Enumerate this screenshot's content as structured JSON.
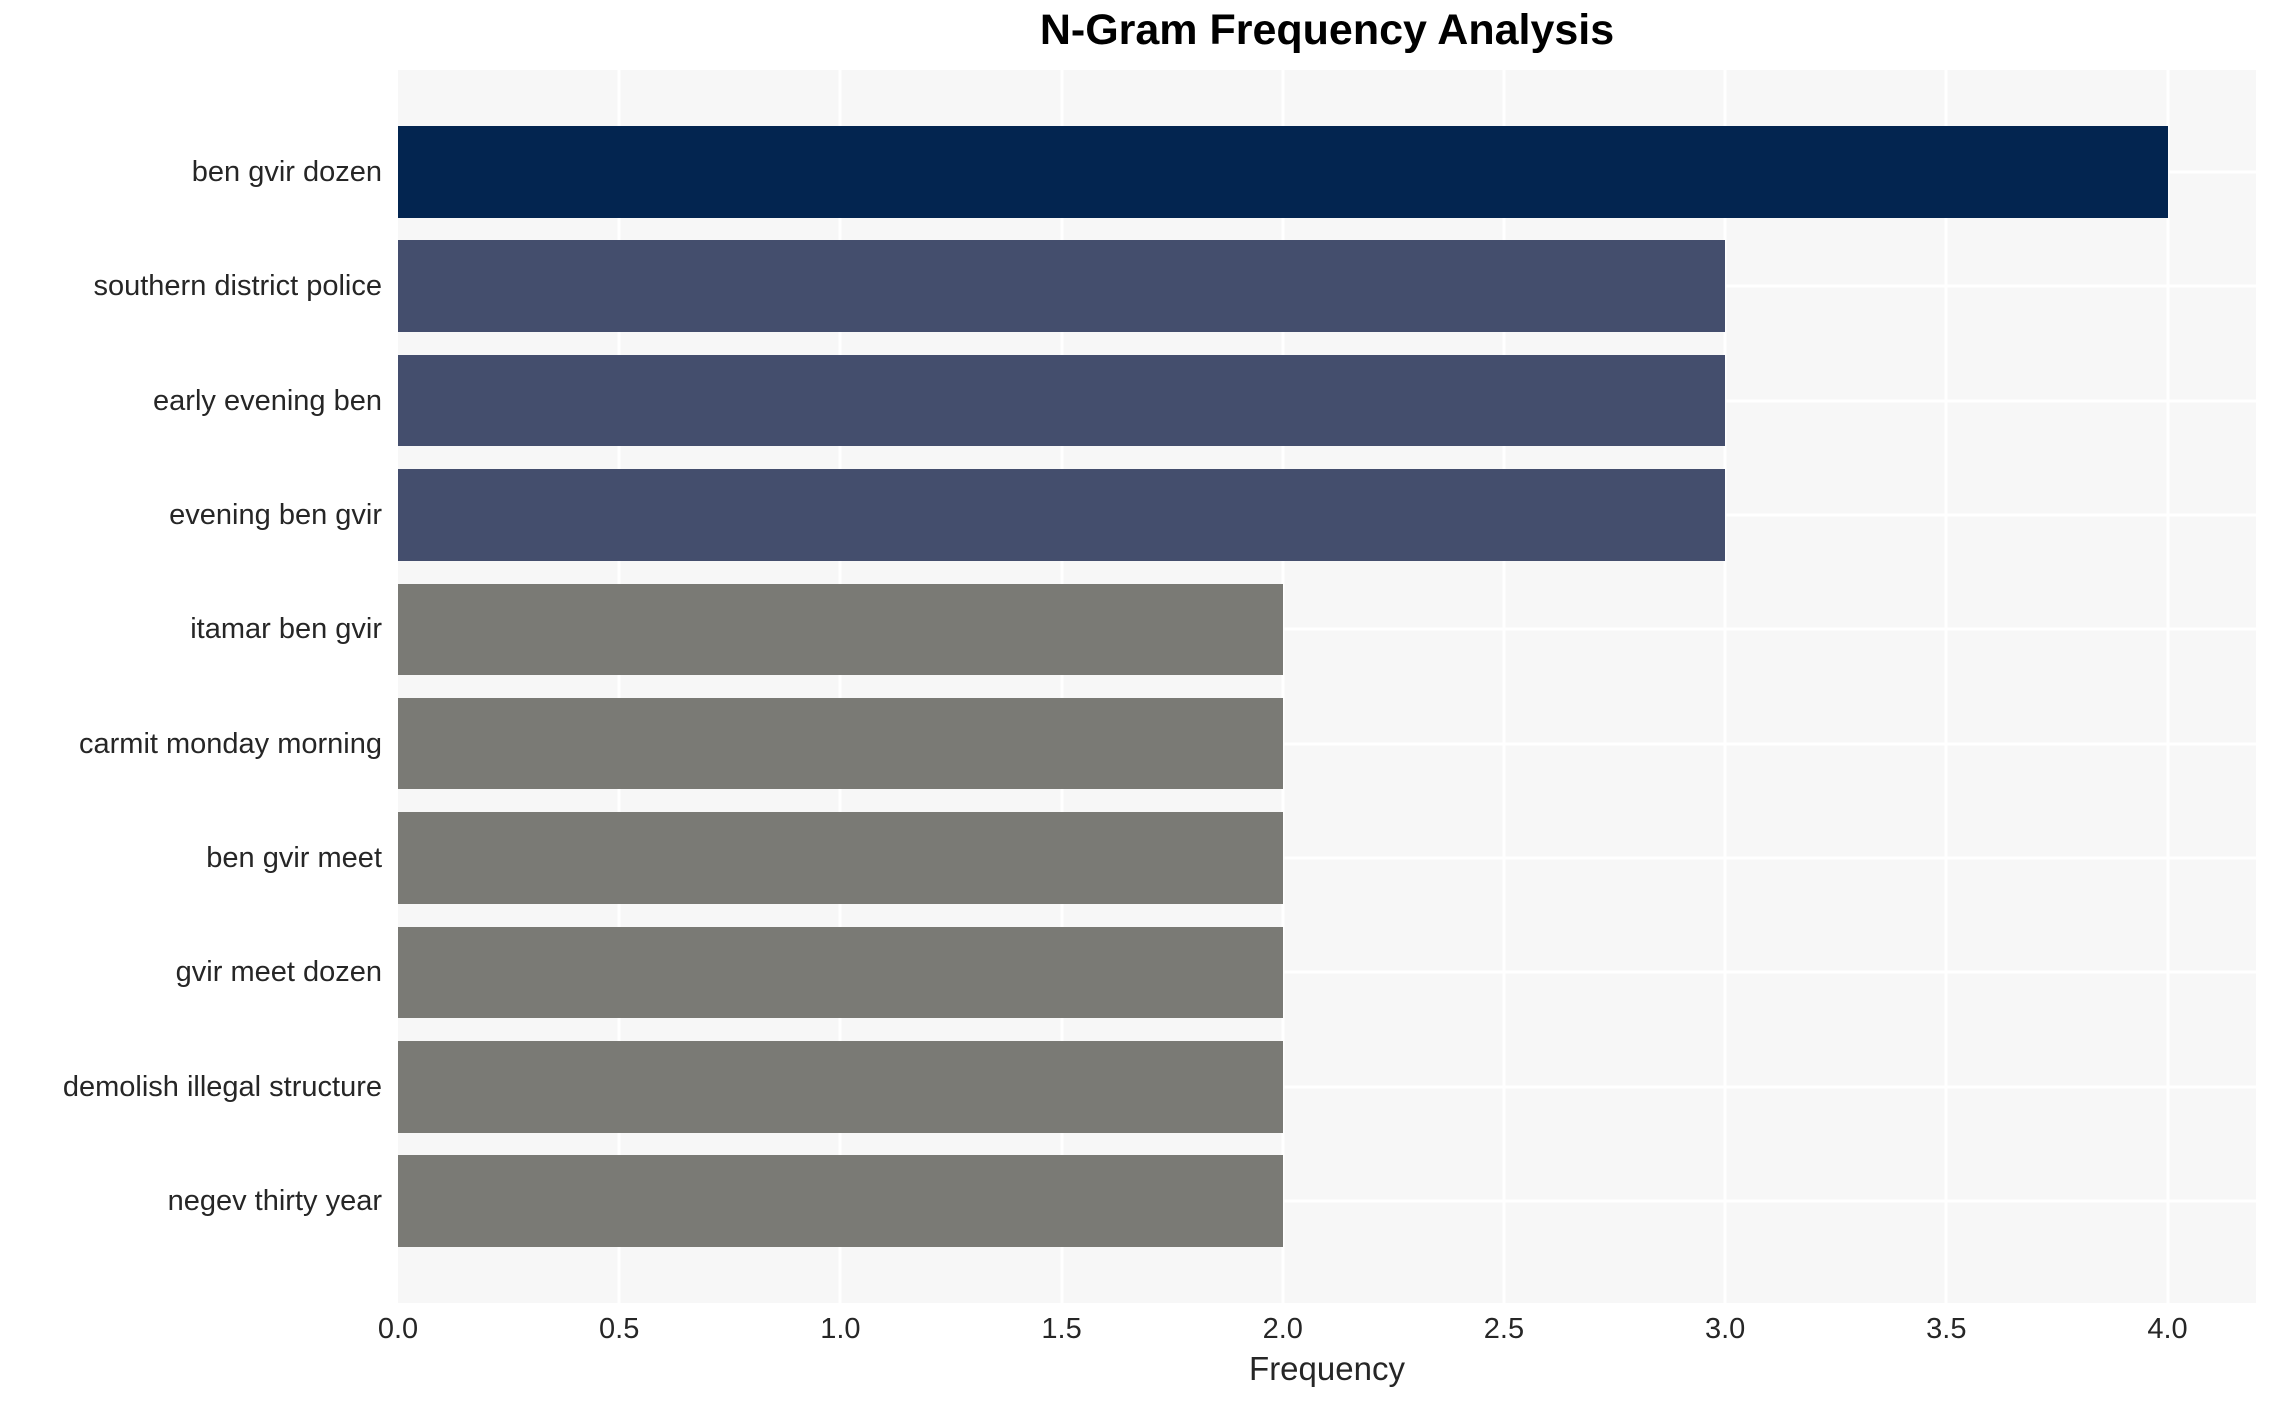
{
  "chart_data": {
    "type": "bar",
    "orientation": "horizontal",
    "title": "N-Gram Frequency Analysis",
    "xlabel": "Frequency",
    "ylabel": "",
    "categories": [
      "ben gvir dozen",
      "southern district police",
      "early evening ben",
      "evening ben gvir",
      "itamar ben gvir",
      "carmit monday morning",
      "ben gvir meet",
      "gvir meet dozen",
      "demolish illegal structure",
      "negev thirty year"
    ],
    "values": [
      4,
      3,
      3,
      3,
      2,
      2,
      2,
      2,
      2,
      2
    ],
    "bar_colors": [
      "#032550",
      "#444e6d",
      "#444e6d",
      "#444e6d",
      "#7a7a75",
      "#7a7a75",
      "#7a7a75",
      "#7a7a75",
      "#7a7a75",
      "#7a7a75"
    ],
    "xlim": [
      0,
      4.2
    ],
    "xticks": [
      0.0,
      0.5,
      1.0,
      1.5,
      2.0,
      2.5,
      3.0,
      3.5,
      4.0
    ],
    "xtick_labels": [
      "0.0",
      "0.5",
      "1.0",
      "1.5",
      "2.0",
      "2.5",
      "3.0",
      "3.5",
      "4.0"
    ],
    "grid": true,
    "legend": "none",
    "colors": {
      "panel_background": "#f7f7f7",
      "grid_line": "#ffffff",
      "tick_text": "#262626",
      "title_text": "#000000"
    }
  }
}
